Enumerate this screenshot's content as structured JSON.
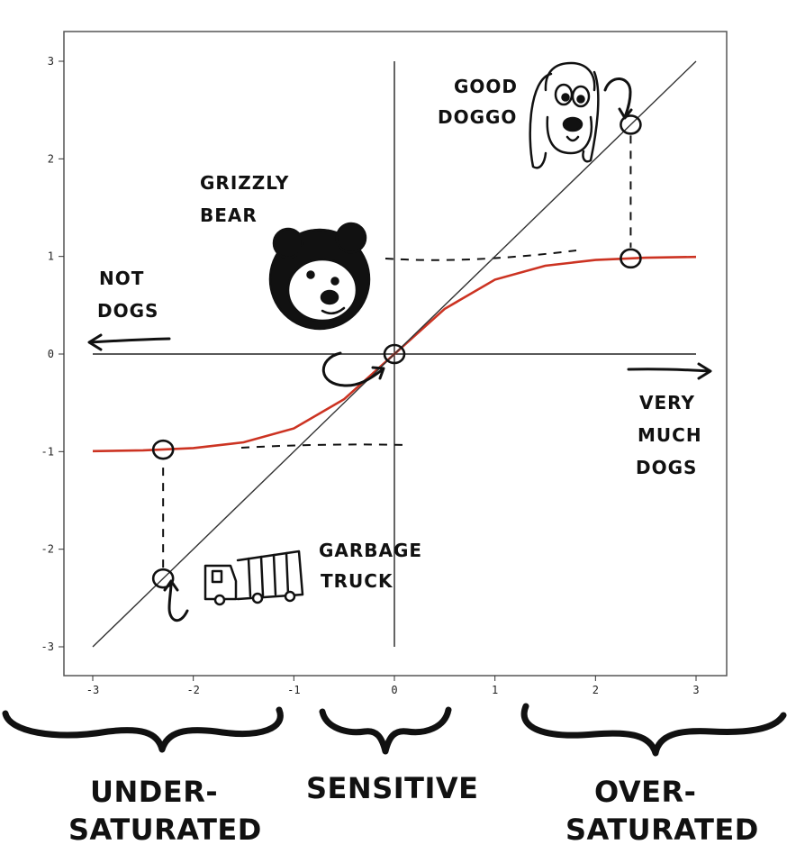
{
  "chart_data": {
    "type": "line",
    "xlim": [
      -3,
      3
    ],
    "ylim": [
      -3,
      3
    ],
    "xticks": [
      -3,
      -2,
      -1,
      0,
      1,
      2,
      3
    ],
    "yticks": [
      -3,
      -2,
      -1,
      0,
      1,
      2,
      3
    ],
    "grid": false,
    "series": [
      {
        "color": "#cc3322",
        "x": [
          -3,
          -2.5,
          -2,
          -1.5,
          -1,
          -0.5,
          0,
          0.5,
          1,
          1.5,
          2,
          2.5,
          3
        ],
        "y": [
          -0.995,
          -0.987,
          -0.964,
          -0.905,
          -0.762,
          -0.462,
          0,
          0.462,
          0.762,
          0.905,
          0.964,
          0.987,
          0.995
        ]
      },
      {
        "color": "#333333",
        "x": [
          -3,
          3
        ],
        "y": [
          -3,
          3
        ]
      }
    ],
    "highlighted_points": [
      {
        "x": -2.3,
        "y": -2.3
      },
      {
        "x": -2.3,
        "y": -0.98
      },
      {
        "x": 0,
        "y": 0
      },
      {
        "x": 2.35,
        "y": 2.35
      },
      {
        "x": 2.35,
        "y": 0.98
      }
    ],
    "annotations": {
      "good_doggo": [
        "GOOD",
        "DOGGO"
      ],
      "grizzly_bear": [
        "GRIZZLY",
        "BEAR"
      ],
      "not_dogs": [
        "NOT",
        "DOGS"
      ],
      "very_much_dogs": [
        "VERY",
        "MUCH",
        "DOGS"
      ],
      "garbage_truck": [
        "GARBAGE",
        "TRUCK"
      ]
    },
    "regions": {
      "under": [
        "UNDER-",
        "SATURATED"
      ],
      "sensitive": [
        "SENSITIVE"
      ],
      "over": [
        "OVER-",
        "SATURATED"
      ]
    }
  }
}
